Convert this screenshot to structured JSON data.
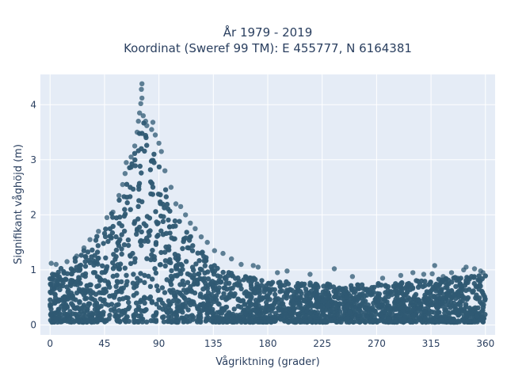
{
  "chart_data": {
    "type": "scatter",
    "title_line1": "År 1979 - 2019",
    "title_line2": "Koordinat (Sweref 99 TM): E 455777, N 6164381",
    "xlabel": "Vågriktning (grader)",
    "ylabel": "Signifikant våghöjd (m)",
    "xlim": [
      -8,
      368
    ],
    "ylim": [
      -0.18,
      4.55
    ],
    "xticks": [
      0,
      45,
      90,
      135,
      180,
      225,
      270,
      315,
      360
    ],
    "yticks": [
      0,
      1,
      2,
      3,
      4
    ],
    "grid": true,
    "colors": {
      "marker": "#2f5a73",
      "plot_bg": "#e5ecf6",
      "grid": "#ffffff",
      "text": "#2a3f5f"
    },
    "series": [
      {
        "envelope": {
          "x": [
            0,
            5,
            15,
            25,
            35,
            45,
            55,
            62,
            68,
            72,
            75,
            78,
            82,
            86,
            90,
            95,
            100,
            110,
            120,
            130,
            140,
            150,
            160,
            170,
            180,
            200,
            225,
            250,
            270,
            290,
            310,
            330,
            345,
            360
          ],
          "y_min": [
            0.05,
            0.05,
            0.05,
            0.05,
            0.05,
            0.05,
            0.05,
            0.05,
            0.05,
            0.05,
            0.05,
            0.05,
            0.05,
            0.05,
            0.05,
            0.05,
            0.05,
            0.05,
            0.05,
            0.05,
            0.05,
            0.05,
            0.05,
            0.05,
            0.05,
            0.05,
            0.05,
            0.05,
            0.05,
            0.05,
            0.05,
            0.05,
            0.05,
            0.05
          ],
          "y_max": [
            0.95,
            1.0,
            1.1,
            1.3,
            1.5,
            1.8,
            2.2,
            2.6,
            3.1,
            3.5,
            3.75,
            3.7,
            3.5,
            3.3,
            3.0,
            2.5,
            2.1,
            1.8,
            1.5,
            1.25,
            1.05,
            0.95,
            0.9,
            0.85,
            0.8,
            0.78,
            0.76,
            0.75,
            0.75,
            0.78,
            0.82,
            0.85,
            0.9,
            0.9
          ]
        },
        "outliers": [
          {
            "x": 1,
            "y": 1.12
          },
          {
            "x": 5,
            "y": 1.1
          },
          {
            "x": 14,
            "y": 1.15
          },
          {
            "x": 22,
            "y": 1.25
          },
          {
            "x": 28,
            "y": 1.4
          },
          {
            "x": 33,
            "y": 1.55
          },
          {
            "x": 40,
            "y": 1.7
          },
          {
            "x": 47,
            "y": 1.95
          },
          {
            "x": 52,
            "y": 2.05
          },
          {
            "x": 57,
            "y": 2.35
          },
          {
            "x": 60,
            "y": 2.55
          },
          {
            "x": 62,
            "y": 2.75
          },
          {
            "x": 63,
            "y": 2.95
          },
          {
            "x": 67,
            "y": 3.05
          },
          {
            "x": 70,
            "y": 3.25
          },
          {
            "x": 72,
            "y": 3.5
          },
          {
            "x": 73,
            "y": 3.7
          },
          {
            "x": 74,
            "y": 3.85
          },
          {
            "x": 75,
            "y": 4.02
          },
          {
            "x": 76,
            "y": 4.12
          },
          {
            "x": 75.5,
            "y": 4.28
          },
          {
            "x": 76,
            "y": 4.38
          },
          {
            "x": 77,
            "y": 3.8
          },
          {
            "x": 79,
            "y": 3.7
          },
          {
            "x": 80,
            "y": 3.62
          },
          {
            "x": 84,
            "y": 3.55
          },
          {
            "x": 85,
            "y": 3.68
          },
          {
            "x": 87,
            "y": 3.45
          },
          {
            "x": 90,
            "y": 3.3
          },
          {
            "x": 92,
            "y": 3.15
          },
          {
            "x": 95,
            "y": 2.8
          },
          {
            "x": 100,
            "y": 2.5
          },
          {
            "x": 104,
            "y": 2.2
          },
          {
            "x": 108,
            "y": 2.15
          },
          {
            "x": 112,
            "y": 2.0
          },
          {
            "x": 116,
            "y": 1.85
          },
          {
            "x": 120,
            "y": 1.75
          },
          {
            "x": 125,
            "y": 1.6
          },
          {
            "x": 130,
            "y": 1.5
          },
          {
            "x": 136,
            "y": 1.35
          },
          {
            "x": 143,
            "y": 1.3
          },
          {
            "x": 150,
            "y": 1.2
          },
          {
            "x": 158,
            "y": 1.1
          },
          {
            "x": 168,
            "y": 1.08
          },
          {
            "x": 172,
            "y": 1.05
          },
          {
            "x": 188,
            "y": 0.95
          },
          {
            "x": 196,
            "y": 0.98
          },
          {
            "x": 215,
            "y": 0.92
          },
          {
            "x": 235,
            "y": 1.02
          },
          {
            "x": 250,
            "y": 0.88
          },
          {
            "x": 275,
            "y": 0.85
          },
          {
            "x": 290,
            "y": 0.9
          },
          {
            "x": 300,
            "y": 0.95
          },
          {
            "x": 309,
            "y": 0.92
          },
          {
            "x": 316,
            "y": 0.93
          },
          {
            "x": 318,
            "y": 1.08
          },
          {
            "x": 325,
            "y": 0.88
          },
          {
            "x": 332,
            "y": 0.95
          },
          {
            "x": 342,
            "y": 1.0
          },
          {
            "x": 344,
            "y": 1.05
          },
          {
            "x": 351,
            "y": 1.02
          },
          {
            "x": 356,
            "y": 0.98
          },
          {
            "x": 358,
            "y": 0.95
          }
        ]
      }
    ]
  }
}
